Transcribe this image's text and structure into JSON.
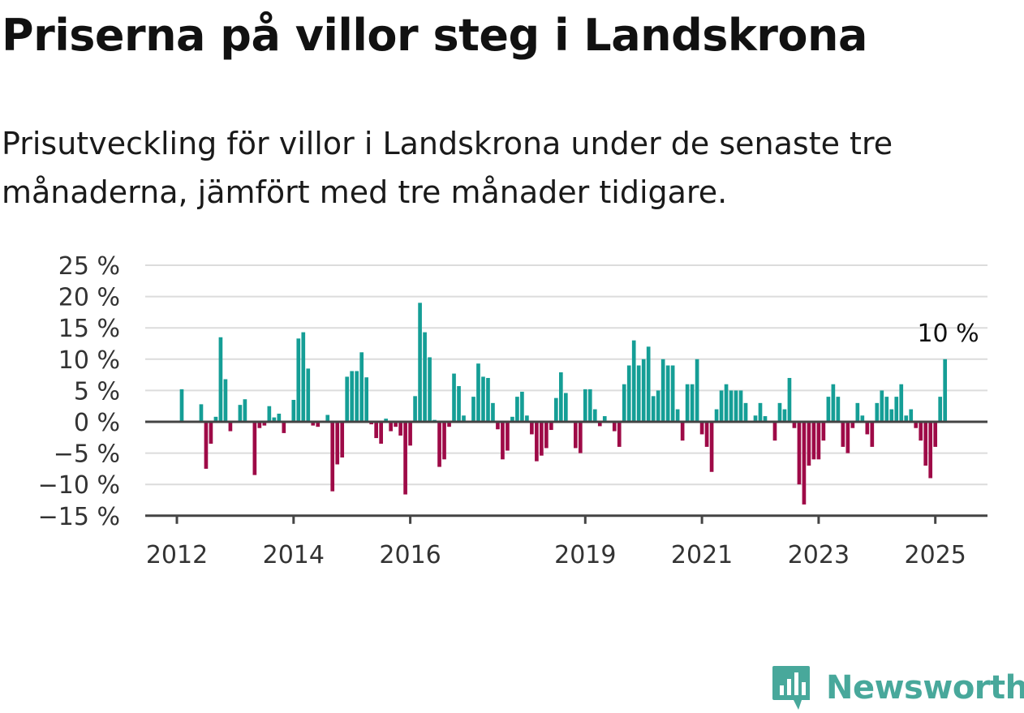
{
  "title": "Priserna på villor steg i Landskrona",
  "subtitle": "Prisutveckling för villor i Landskrona under de senaste tre månaderna, jämfört med tre månader tidigare.",
  "brand": {
    "name": "Newsworthy",
    "icon": "newsworthy-logo-icon",
    "color": "#48a89b"
  },
  "colors": {
    "positive": "#159e96",
    "negative": "#9e0a47",
    "grid": "#dcdcdc",
    "axis": "#444444"
  },
  "chart_data": {
    "type": "bar",
    "x_unit": "month",
    "start": "2012-02",
    "y_ticks": [
      "25 %",
      "20 %",
      "15 %",
      "10 %",
      "5 %",
      "0 %",
      "−5 %",
      "−10 %",
      "−15 %"
    ],
    "y_tick_values": [
      25,
      20,
      15,
      10,
      5,
      0,
      -5,
      -10,
      -15
    ],
    "ylim": [
      -15,
      25
    ],
    "x_ticks": [
      "2012",
      "2014",
      "2016",
      "2019",
      "2021",
      "2023",
      "2025"
    ],
    "x_tick_months": [
      "2012-01",
      "2014-01",
      "2016-01",
      "2019-01",
      "2021-01",
      "2023-01",
      "2025-01"
    ],
    "grid": true,
    "last_value_label": "10 %",
    "values": [
      5.2,
      0,
      0,
      0,
      2.8,
      -7.5,
      -3.5,
      0.8,
      13.5,
      6.8,
      -1.5,
      0,
      2.7,
      3.6,
      0,
      -8.5,
      -1,
      -0.6,
      2.5,
      0.7,
      1.3,
      -1.8,
      0,
      3.5,
      13.3,
      14.3,
      8.5,
      -0.6,
      -0.8,
      0,
      1.1,
      -11.1,
      -6.8,
      -5.7,
      7.2,
      8.1,
      8.1,
      11.1,
      7.1,
      -0.4,
      -2.6,
      -3.5,
      0.5,
      -1.5,
      -0.8,
      -2.2,
      -11.6,
      -3.8,
      4.1,
      19.0,
      14.3,
      10.3,
      0.3,
      -7.2,
      -6.0,
      -0.8,
      7.7,
      5.7,
      1.0,
      0,
      4.0,
      9.3,
      7.2,
      7.0,
      3.0,
      -1.2,
      -6.0,
      -4.6,
      0.8,
      4.0,
      4.8,
      1.0,
      -2.0,
      -6.3,
      -5.4,
      -4.2,
      -1.3,
      3.8,
      7.9,
      4.6,
      0,
      -4.2,
      -5.0,
      5.2,
      5.2,
      2.0,
      -0.7,
      0.9,
      0,
      -1.5,
      -4.0,
      6.0,
      9.0,
      13.0,
      9.0,
      10.0,
      12.0,
      4.1,
      5.0,
      10.0,
      9.0,
      9.0,
      2.0,
      -3.0,
      6.0,
      6.0,
      10.0,
      -2.0,
      -4.0,
      -8.0,
      2.0,
      5.0,
      6.0,
      5.0,
      5.0,
      5.0,
      3.0,
      0,
      1.0,
      3.0,
      0.9,
      0,
      -3.0,
      3.0,
      2.0,
      7.0,
      -1.0,
      -10.0,
      -13.2,
      -7.0,
      -6.0,
      -6.0,
      -3.0,
      4.0,
      6.0,
      4.0,
      -4.0,
      -5.0,
      -1.0,
      3.0,
      1.0,
      -2.0,
      -4.0,
      3.0,
      5.0,
      4.0,
      2.0,
      4.0,
      6.0,
      1.0,
      2.0,
      -1.0,
      -3.0,
      -7.0,
      -9.0,
      -4.0,
      4.0,
      10.0
    ]
  }
}
